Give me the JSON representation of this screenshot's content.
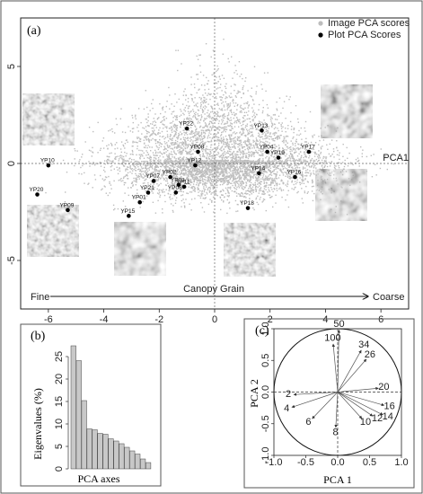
{
  "panel_labels": {
    "a": "(a)",
    "b": "(b)",
    "c": "(c)"
  },
  "chart_data": [
    {
      "panel": "a",
      "type": "scatter",
      "xlabel": "Canopy Grain",
      "axis_ends": {
        "left": "Fine",
        "right": "Coarse"
      },
      "axis_line_label": "PCA1",
      "xlim": [
        -7,
        7
      ],
      "ylim": [
        -7.5,
        7.5
      ],
      "xticks": [
        -6,
        -4,
        -2,
        0,
        2,
        4,
        6
      ],
      "yticks": [
        -5,
        0,
        5
      ],
      "legend": {
        "position": "top-right",
        "entries": [
          "Image PCA scores",
          "Plot PCA Scores"
        ]
      },
      "colors": {
        "image_scores": "#bdbdbd",
        "plot_scores": "#000000"
      },
      "series": [
        {
          "name": "Plot PCA Scores",
          "points": [
            {
              "label": "YP10",
              "x": -6.0,
              "y": -0.1
            },
            {
              "label": "YP20",
              "x": -6.4,
              "y": -1.6
            },
            {
              "label": "YP09",
              "x": -5.3,
              "y": -2.4
            },
            {
              "label": "YP22",
              "x": -1.0,
              "y": 1.8
            },
            {
              "label": "YP08",
              "x": -0.6,
              "y": 0.6
            },
            {
              "label": "YP12",
              "x": -0.7,
              "y": -0.1
            },
            {
              "label": "YP07",
              "x": -2.2,
              "y": -0.9
            },
            {
              "label": "YP02",
              "x": -1.6,
              "y": -0.7
            },
            {
              "label": "YP21",
              "x": -2.4,
              "y": -1.5
            },
            {
              "label": "YP03",
              "x": -1.3,
              "y": -1.1
            },
            {
              "label": "YP11",
              "x": -1.1,
              "y": -1.2
            },
            {
              "label": "YP06",
              "x": -1.4,
              "y": -1.5
            },
            {
              "label": "YP01",
              "x": -2.7,
              "y": -2.0
            },
            {
              "label": "YP15",
              "x": -3.1,
              "y": -2.7
            },
            {
              "label": "YP13",
              "x": 1.7,
              "y": 1.7
            },
            {
              "label": "YP04",
              "x": 1.9,
              "y": 0.6
            },
            {
              "label": "YP19",
              "x": 2.3,
              "y": 0.3
            },
            {
              "label": "YP17",
              "x": 3.4,
              "y": 0.6
            },
            {
              "label": "YP14",
              "x": 1.6,
              "y": -0.5
            },
            {
              "label": "YP16",
              "x": 2.9,
              "y": -0.7
            },
            {
              "label": "YP18",
              "x": 1.2,
              "y": -2.3
            }
          ]
        }
      ]
    },
    {
      "panel": "b",
      "type": "bar",
      "xlabel": "PCA axes",
      "ylabel": "Eigenvalues (%)",
      "ylim": [
        0,
        30
      ],
      "yticks": [
        0,
        5,
        10,
        15,
        20,
        25
      ],
      "values": [
        27.4,
        24.1,
        15.2,
        8.9,
        8.7,
        7.9,
        7.7,
        6.7,
        6.2,
        5.6,
        4.8,
        4.0,
        3.3,
        2.2,
        1.4
      ]
    },
    {
      "panel": "c",
      "type": "scatter",
      "xlabel": "PCA 1",
      "ylabel": "PCA 2",
      "xlim": [
        -1.0,
        1.0
      ],
      "ylim": [
        -1.0,
        1.0
      ],
      "xticks": [
        -1.0,
        -0.5,
        0.0,
        0.5,
        1.0
      ],
      "yticks": [
        -1.0,
        -0.5,
        0.0,
        0.5,
        1.0
      ],
      "vectors": [
        {
          "label": "50",
          "x": 0.02,
          "y": 0.98
        },
        {
          "label": "100",
          "x": -0.07,
          "y": 0.76
        },
        {
          "label": "34",
          "x": 0.37,
          "y": 0.66
        },
        {
          "label": "26",
          "x": 0.45,
          "y": 0.52
        },
        {
          "label": "20",
          "x": 0.64,
          "y": 0.06
        },
        {
          "label": "16",
          "x": 0.73,
          "y": -0.21
        },
        {
          "label": "14",
          "x": 0.71,
          "y": -0.36
        },
        {
          "label": "12",
          "x": 0.55,
          "y": -0.38
        },
        {
          "label": "10",
          "x": 0.38,
          "y": -0.42
        },
        {
          "label": "8",
          "x": -0.03,
          "y": -0.56
        },
        {
          "label": "6",
          "x": -0.4,
          "y": -0.42
        },
        {
          "label": "4",
          "x": -0.72,
          "y": -0.24
        },
        {
          "label": "2",
          "x": -0.69,
          "y": -0.04
        }
      ]
    }
  ]
}
